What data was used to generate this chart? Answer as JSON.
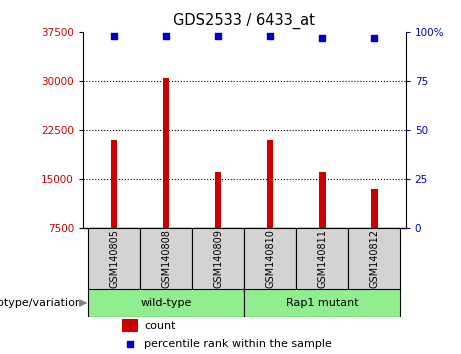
{
  "title": "GDS2533 / 6433_at",
  "samples": [
    "GSM140805",
    "GSM140808",
    "GSM140809",
    "GSM140810",
    "GSM140811",
    "GSM140812"
  ],
  "counts": [
    21000,
    30500,
    16000,
    21000,
    16000,
    13500
  ],
  "percentile_ranks": [
    98,
    98,
    98,
    98,
    97,
    97
  ],
  "ylim_left": [
    7500,
    37500
  ],
  "yticks_left": [
    7500,
    15000,
    22500,
    30000,
    37500
  ],
  "ylim_right": [
    0,
    100
  ],
  "yticks_right": [
    0,
    25,
    50,
    75,
    100
  ],
  "bar_color": "#cc0000",
  "dot_color": "#0000cc",
  "group_label": "genotype/variation",
  "tick_label_color_left": "#cc0000",
  "tick_label_color_right": "#0000cc",
  "legend_items": [
    {
      "label": "count",
      "color": "#cc0000"
    },
    {
      "label": "percentile rank within the sample",
      "color": "#0000cc"
    }
  ],
  "bar_bottom": 7500,
  "grid_linestyle": "dotted",
  "grid_color": "#000000",
  "sample_box_color": "#d3d3d3",
  "group1_label": "wild-type",
  "group2_label": "Rap1 mutant",
  "group_color": "#90ee90"
}
